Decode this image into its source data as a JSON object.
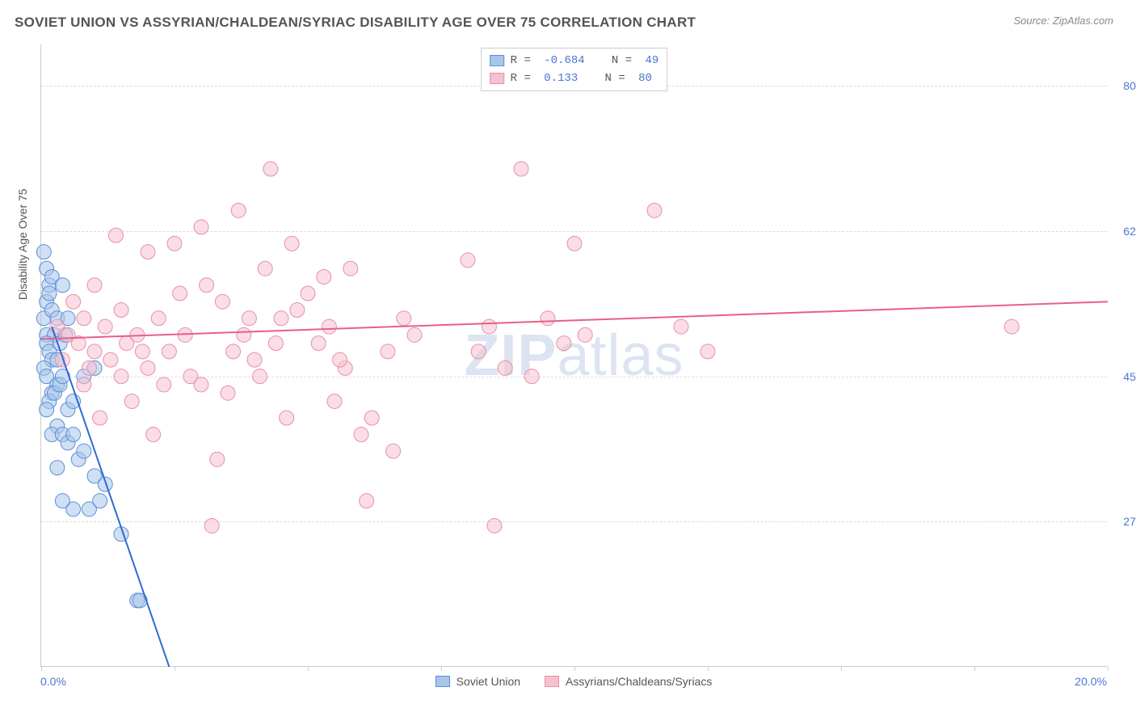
{
  "header": {
    "title": "SOVIET UNION VS ASSYRIAN/CHALDEAN/SYRIAC DISABILITY AGE OVER 75 CORRELATION CHART",
    "source": "Source: ZipAtlas.com"
  },
  "watermark": {
    "bold": "ZIP",
    "light": "atlas"
  },
  "chart": {
    "type": "scatter",
    "background_color": "#ffffff",
    "grid_color": "#dddddd",
    "axis_color": "#cccccc",
    "text_color": "#555555",
    "value_color": "#4876d6",
    "y_axis_title": "Disability Age Over 75",
    "xlim": [
      0,
      20
    ],
    "ylim": [
      10,
      85
    ],
    "x_ticks": [
      0,
      2.5,
      5,
      7.5,
      10,
      12.5,
      15,
      17.5,
      20
    ],
    "x_tick_labels": {
      "left": "0.0%",
      "right": "20.0%"
    },
    "y_grid": [
      {
        "value": 80.0,
        "label": "80.0%"
      },
      {
        "value": 62.5,
        "label": "62.5%"
      },
      {
        "value": 45.0,
        "label": "45.0%"
      },
      {
        "value": 27.5,
        "label": "27.5%"
      }
    ],
    "marker_radius": 9,
    "marker_opacity": 0.55,
    "line_width": 2,
    "series": [
      {
        "id": "soviet",
        "label": "Soviet Union",
        "fill_color": "#a8c5eb",
        "stroke_color": "#5b8fd6",
        "line_color": "#2e6bd1",
        "R": "-0.684",
        "N": "49",
        "trend": {
          "x1": 0.2,
          "y1": 51,
          "x2": 2.4,
          "y2": 10
        },
        "points": [
          [
            0.05,
            60
          ],
          [
            0.1,
            58
          ],
          [
            0.15,
            56
          ],
          [
            0.1,
            54
          ],
          [
            0.2,
            57
          ],
          [
            0.05,
            52
          ],
          [
            0.15,
            55
          ],
          [
            0.1,
            50
          ],
          [
            0.2,
            53
          ],
          [
            0.3,
            52
          ],
          [
            0.25,
            50
          ],
          [
            0.1,
            49
          ],
          [
            0.15,
            48
          ],
          [
            0.2,
            47
          ],
          [
            0.05,
            46
          ],
          [
            0.1,
            45
          ],
          [
            0.3,
            47
          ],
          [
            0.4,
            56
          ],
          [
            0.5,
            52
          ],
          [
            0.35,
            49
          ],
          [
            0.45,
            50
          ],
          [
            0.3,
            44
          ],
          [
            0.2,
            43
          ],
          [
            0.15,
            42
          ],
          [
            0.1,
            41
          ],
          [
            0.25,
            43
          ],
          [
            0.35,
            44
          ],
          [
            0.5,
            41
          ],
          [
            0.6,
            42
          ],
          [
            0.4,
            45
          ],
          [
            0.3,
            39
          ],
          [
            0.2,
            38
          ],
          [
            0.4,
            38
          ],
          [
            0.5,
            37
          ],
          [
            0.6,
            38
          ],
          [
            0.7,
            35
          ],
          [
            0.8,
            36
          ],
          [
            1.0,
            33
          ],
          [
            1.2,
            32
          ],
          [
            0.9,
            29
          ],
          [
            1.1,
            30
          ],
          [
            1.5,
            26
          ],
          [
            1.8,
            18
          ],
          [
            1.85,
            18
          ],
          [
            0.6,
            29
          ],
          [
            0.4,
            30
          ],
          [
            0.3,
            34
          ],
          [
            1.0,
            46
          ],
          [
            0.8,
            45
          ]
        ]
      },
      {
        "id": "assyrian",
        "label": "Assyrians/Chaldeans/Syriacs",
        "fill_color": "#f5c1cf",
        "stroke_color": "#e88fa8",
        "line_color": "#e85f8a",
        "R": "0.133",
        "N": "80",
        "trend": {
          "x1": 0,
          "y1": 49.5,
          "x2": 20,
          "y2": 54
        },
        "points": [
          [
            0.3,
            51
          ],
          [
            0.5,
            50
          ],
          [
            0.7,
            49
          ],
          [
            0.8,
            52
          ],
          [
            1.0,
            48
          ],
          [
            1.2,
            51
          ],
          [
            1.3,
            47
          ],
          [
            1.5,
            53
          ],
          [
            1.6,
            49
          ],
          [
            1.8,
            50
          ],
          [
            2.0,
            46
          ],
          [
            2.2,
            52
          ],
          [
            2.4,
            48
          ],
          [
            2.5,
            61
          ],
          [
            2.6,
            55
          ],
          [
            2.8,
            45
          ],
          [
            3.0,
            63
          ],
          [
            3.1,
            56
          ],
          [
            3.2,
            27
          ],
          [
            3.3,
            35
          ],
          [
            3.4,
            54
          ],
          [
            3.5,
            43
          ],
          [
            3.7,
            65
          ],
          [
            3.8,
            50
          ],
          [
            4.0,
            47
          ],
          [
            4.2,
            58
          ],
          [
            4.3,
            70
          ],
          [
            4.5,
            52
          ],
          [
            4.6,
            40
          ],
          [
            4.7,
            61
          ],
          [
            5.0,
            55
          ],
          [
            5.2,
            49
          ],
          [
            5.3,
            57
          ],
          [
            5.5,
            42
          ],
          [
            5.7,
            46
          ],
          [
            5.8,
            58
          ],
          [
            6.0,
            38
          ],
          [
            6.1,
            30
          ],
          [
            6.2,
            40
          ],
          [
            6.5,
            48
          ],
          [
            6.6,
            36
          ],
          [
            6.8,
            52
          ],
          [
            7.0,
            50
          ],
          [
            8.0,
            59
          ],
          [
            8.2,
            48
          ],
          [
            8.4,
            51
          ],
          [
            8.5,
            27
          ],
          [
            8.7,
            46
          ],
          [
            9.0,
            70
          ],
          [
            9.2,
            45
          ],
          [
            9.5,
            52
          ],
          [
            9.8,
            49
          ],
          [
            10.0,
            61
          ],
          [
            10.2,
            50
          ],
          [
            11.5,
            65
          ],
          [
            12.0,
            51
          ],
          [
            12.5,
            48
          ],
          [
            18.2,
            51
          ],
          [
            1.0,
            56
          ],
          [
            1.4,
            62
          ],
          [
            0.6,
            54
          ],
          [
            0.9,
            46
          ],
          [
            2.0,
            60
          ],
          [
            2.3,
            44
          ],
          [
            1.7,
            42
          ],
          [
            2.1,
            38
          ],
          [
            3.0,
            44
          ],
          [
            3.6,
            48
          ],
          [
            4.1,
            45
          ],
          [
            4.4,
            49
          ],
          [
            4.8,
            53
          ],
          [
            5.4,
            51
          ],
          [
            0.4,
            47
          ],
          [
            0.8,
            44
          ],
          [
            1.1,
            40
          ],
          [
            1.5,
            45
          ],
          [
            1.9,
            48
          ],
          [
            2.7,
            50
          ],
          [
            3.9,
            52
          ],
          [
            5.6,
            47
          ]
        ]
      }
    ]
  },
  "legend_top": {
    "r_label": "R =",
    "n_label": "N ="
  }
}
